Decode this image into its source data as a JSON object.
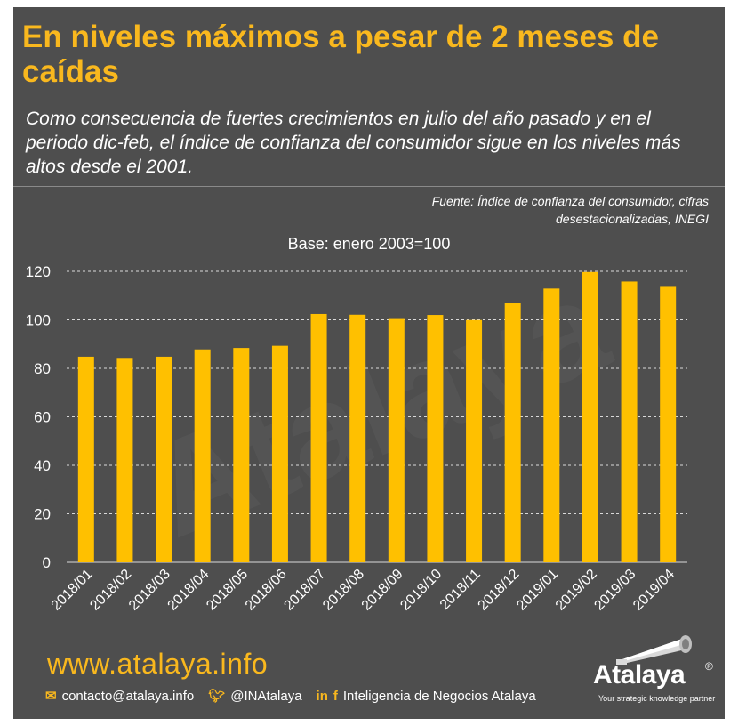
{
  "header": {
    "title": "En niveles máximos a pesar de 2 meses de caídas",
    "subtitle": "Como consecuencia de fuertes crecimientos en julio del año pasado y en el periodo dic-feb, el índice de confianza del consumidor sigue en los niveles más altos desde el 2001.",
    "source_line1": "Fuente: Índice de confianza del consumidor, cifras",
    "source_line2": "desestacionalizadas, INEGI"
  },
  "colors": {
    "background": "#4e4e4e",
    "accent": "#f9b81e",
    "bar": "#ffc000",
    "text": "#ffffff"
  },
  "chart_data": {
    "type": "bar",
    "title": "Base: enero 2003=100",
    "xlabel": "",
    "ylabel": "",
    "categories": [
      "2018/01",
      "2018/02",
      "2018/03",
      "2018/04",
      "2018/05",
      "2018/06",
      "2018/07",
      "2018/08",
      "2018/09",
      "2018/10",
      "2018/11",
      "2018/12",
      "2019/01",
      "2019/02",
      "2019/03",
      "2019/04"
    ],
    "values": [
      84.8,
      84.3,
      84.8,
      87.8,
      88.4,
      89.3,
      102.4,
      102.1,
      100.7,
      102.0,
      99.9,
      106.8,
      112.9,
      119.7,
      115.8,
      113.6
    ],
    "ylim": [
      0,
      120
    ],
    "yticks": [
      0,
      20,
      40,
      60,
      80,
      100,
      120
    ],
    "grid": true,
    "legend": "none"
  },
  "watermark": {
    "text": "Atalaya"
  },
  "footer": {
    "website": "www.atalaya.info",
    "email": "contacto@atalaya.info",
    "twitter": "@INAtalaya",
    "social_name": "Inteligencia de Negocios Atalaya",
    "logo_name": "Atalaya",
    "logo_reg": "®",
    "logo_tagline": "Your strategic knowledge partner",
    "icons": [
      "email-icon",
      "twitter-icon",
      "linkedin-icon",
      "facebook-icon"
    ]
  }
}
